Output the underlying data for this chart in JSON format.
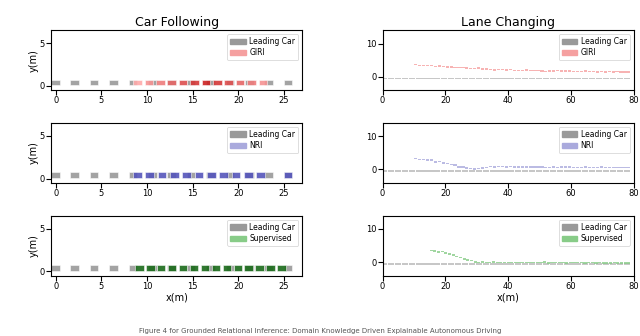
{
  "col_titles": [
    "Car Following",
    "Lane Changing"
  ],
  "row_labels": [
    "GIRI",
    "NRI",
    "Supervised"
  ],
  "colors": {
    "leading": "#999999",
    "GIRI_dark": "#cc2222",
    "GIRI_light": "#f5a0a0",
    "NRI_dark": "#5555bb",
    "NRI_light": "#aaaadd",
    "Supervised_dark": "#1a6b1a",
    "Supervised_light": "#88cc88"
  },
  "car_follow": {
    "xlim": [
      -0.5,
      27
    ],
    "ylim": [
      -0.5,
      6.5
    ],
    "yticks": [
      0,
      5
    ],
    "xticks": [
      0,
      5,
      10,
      15,
      20,
      25
    ]
  },
  "lane_change": {
    "xlim": [
      0,
      80
    ],
    "ylim": [
      -4,
      14
    ],
    "yticks": [
      0,
      10
    ],
    "xticks": [
      0,
      20,
      40,
      60,
      80
    ]
  },
  "figsize": [
    6.4,
    3.36
  ],
  "dpi": 100
}
